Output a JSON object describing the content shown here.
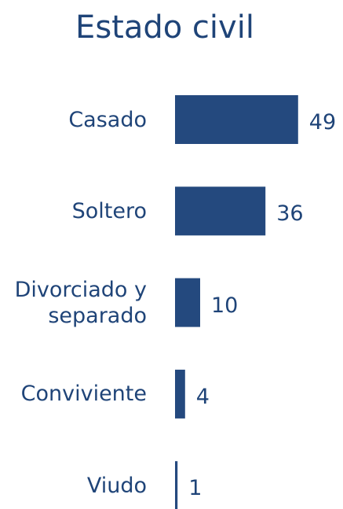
{
  "chart_data": {
    "type": "bar",
    "orientation": "horizontal",
    "title": "Estado civil",
    "categories": [
      "Casado",
      "Soltero",
      "Divorciado y separado",
      "Conviviente",
      "Viudo"
    ],
    "values": [
      49,
      36,
      10,
      4,
      1
    ],
    "color": "#24497e"
  }
}
